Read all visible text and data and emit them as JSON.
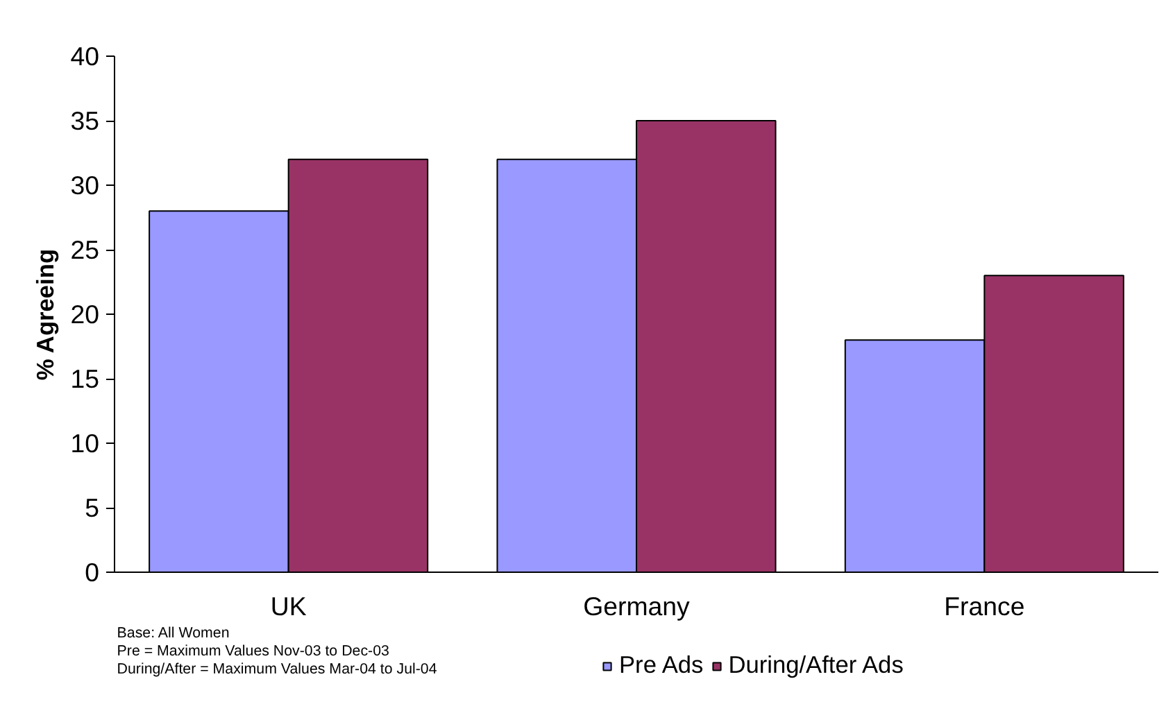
{
  "chart_data": {
    "type": "bar",
    "ylabel": "% Agreeing",
    "categories": [
      "UK",
      "Germany",
      "France"
    ],
    "series": [
      {
        "name": "Pre Ads",
        "color": "#9999ff",
        "values": [
          28,
          32,
          18
        ]
      },
      {
        "name": "During/After Ads",
        "color": "#993366",
        "values": [
          32,
          35,
          23
        ]
      }
    ],
    "ylim": [
      0,
      40
    ],
    "yticks": [
      0,
      5,
      10,
      15,
      20,
      25,
      30,
      35,
      40
    ],
    "grid": false,
    "legend": "bottom",
    "annotations": [
      "Base:  All Women",
      " Pre  = Maximum Values Nov-03 to Dec-03",
      " During/After = Maximum Values Mar-04 to Jul-04"
    ]
  }
}
